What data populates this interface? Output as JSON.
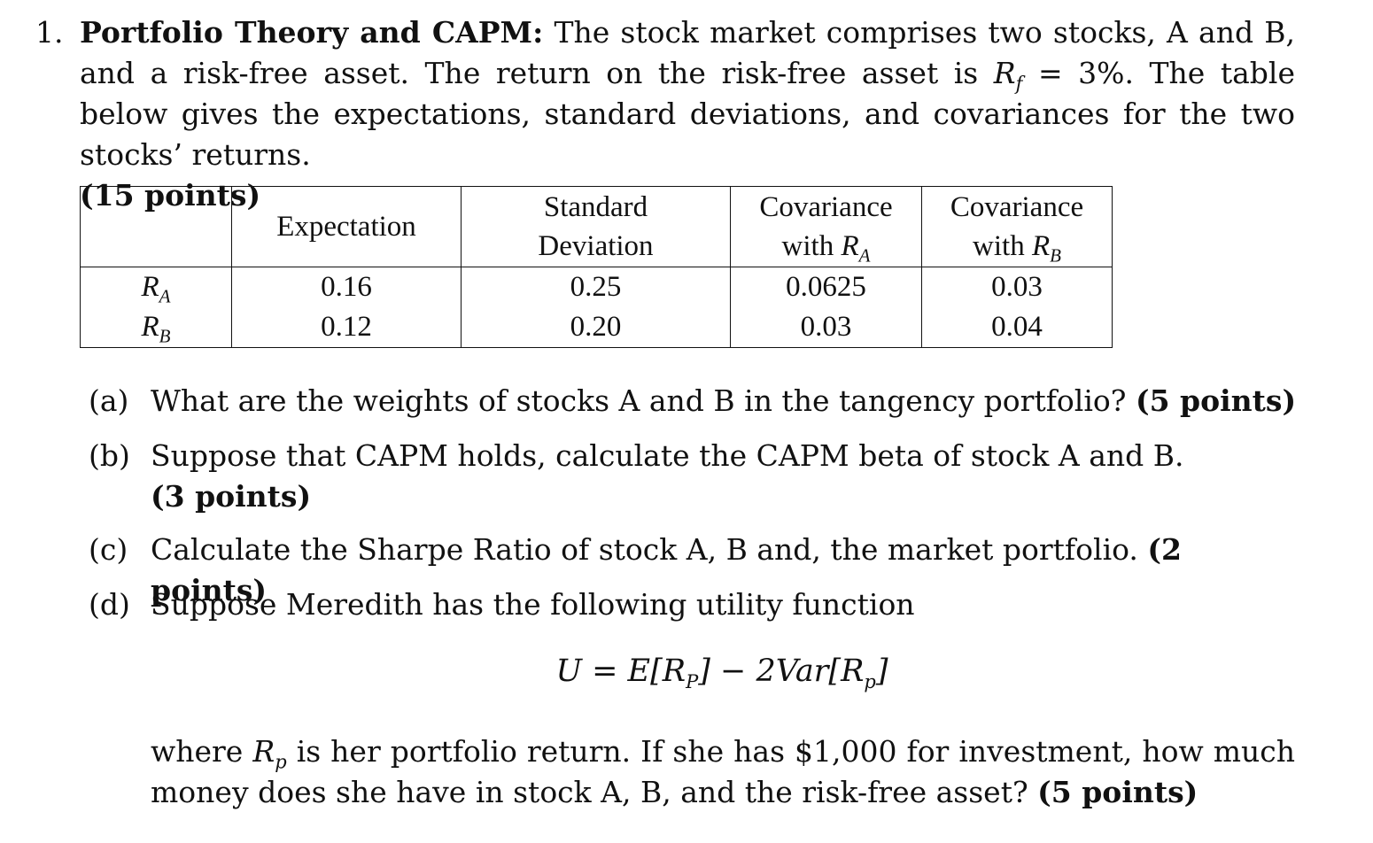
{
  "question": {
    "number": "1.",
    "title": "Portfolio Theory and CAPM:",
    "intro_1": "The stock market comprises two stocks, A and B, and a risk-free asset. The return on the risk-free asset is",
    "rf_symbol": "R",
    "rf_sub": "f",
    "intro_2": "= 3%. The table below gives the expectations, standard deviations, and covariances for the two stocks’ returns.",
    "points": "(15 points)"
  },
  "table": {
    "headers": [
      "",
      "Expectation",
      "Standard Deviation",
      "Covariance with R_A",
      "Covariance with R_B"
    ],
    "header_labels": {
      "expectation": "Expectation",
      "std_line1": "Standard",
      "std_line2": "Deviation",
      "cov_line1": "Covariance",
      "cov_with": "with",
      "cov_a_sub": "A",
      "cov_b_sub": "B"
    },
    "rows": [
      {
        "label": "R",
        "label_sub": "A",
        "expectation": "0.16",
        "std": "0.25",
        "cov_a": "0.0625",
        "cov_b": "0.03"
      },
      {
        "label": "R",
        "label_sub": "B",
        "expectation": "0.12",
        "std": "0.20",
        "cov_a": "0.03",
        "cov_b": "0.04"
      }
    ]
  },
  "parts": [
    {
      "label": "(a)",
      "text": "What are the weights of stocks A and B in the tangency portfolio?",
      "points": "(5 points)"
    },
    {
      "label": "(b)",
      "text": "Suppose that CAPM holds, calculate the CAPM beta of stock A and B.",
      "points": "(3 points)"
    },
    {
      "label": "(c)",
      "text": "Calculate the Sharpe Ratio of stock A, B and, the market portfolio.",
      "points": "(2 points)"
    },
    {
      "label": "(d)",
      "text": "Suppose Meredith has the following utility function"
    }
  ],
  "formula": {
    "lhs": "U = E[R",
    "sub_p_cap": "P",
    "mid": "] − 2Var[R",
    "sub_p": "p",
    "end": "]"
  },
  "final": {
    "text_1": "where",
    "rp_symbol": "R",
    "rp_sub": "p",
    "text_2": "is her portfolio return. If she has $1,000 for investment, how much money does she have in stock A, B, and the risk-free asset?",
    "points": "(5 points)"
  }
}
